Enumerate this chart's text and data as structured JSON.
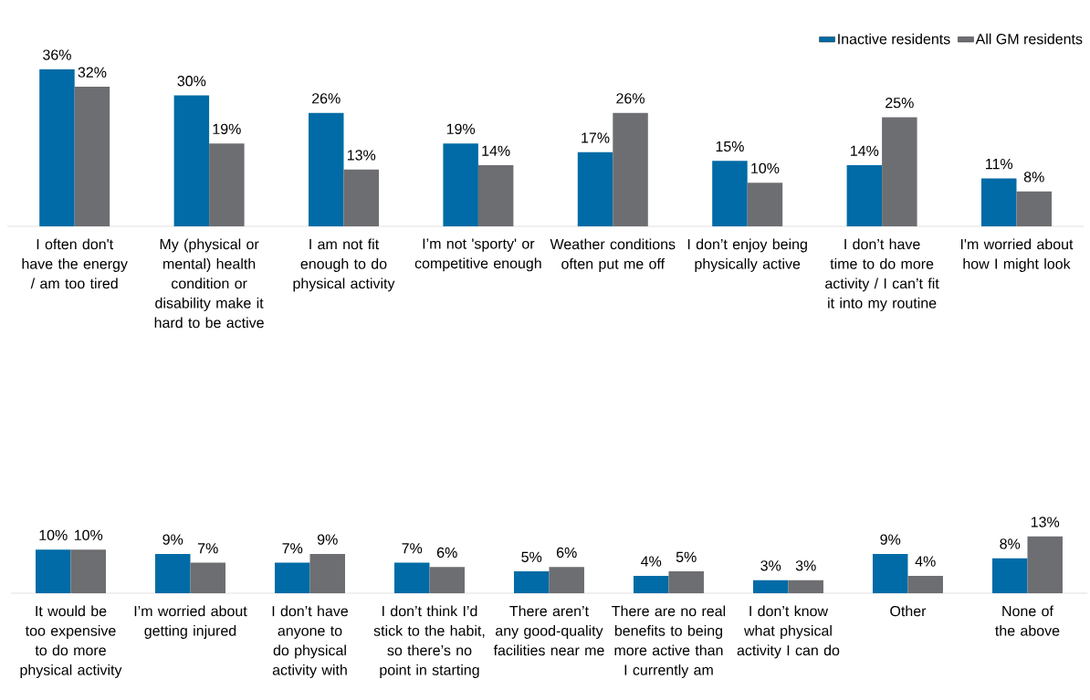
{
  "chart_data": [
    {
      "type": "bar",
      "categories": [
        "I often don't have the energy / am too tired",
        "My (physical or mental) health condition or disability make it hard to be active",
        "I am not fit enough to do physical activity",
        "I’m not 'sporty' or competitive enough",
        "Weather conditions often put me off",
        "I don’t enjoy being physically active",
        "I don’t have time to do more activity / I can’t fit it into my routine",
        "I'm worried about how I might look"
      ],
      "series": [
        {
          "name": "Inactive residents",
          "color": "#006ba6",
          "values": [
            36,
            30,
            26,
            19,
            17,
            15,
            14,
            11
          ],
          "value_labels": [
            "36%",
            "30%",
            "26%",
            "19%",
            "17%",
            "15%",
            "14%",
            "11%"
          ]
        },
        {
          "name": "All GM residents",
          "color": "#6d6e71",
          "values": [
            32,
            19,
            13,
            14,
            26,
            10,
            25,
            8
          ],
          "value_labels": [
            "32%",
            "19%",
            "13%",
            "14%",
            "26%",
            "10%",
            "25%",
            "8%"
          ]
        }
      ],
      "legend": "top right"
    },
    {
      "type": "bar",
      "categories": [
        "It would be too expensive to do more physical activity",
        "I’m worried about getting injured",
        "I don’t have anyone to do physical activity with",
        "I don’t think I’d stick to the habit, so there’s no point in starting",
        "There aren’t any good-quality facilities near me",
        "There are no real benefits to being more active than I currently am",
        "I don’t know what physical activity I can do",
        "Other",
        "None of the above"
      ],
      "series": [
        {
          "color": "#006ba6",
          "values": [
            10,
            9,
            7,
            7,
            5,
            4,
            3,
            9,
            8
          ],
          "value_labels": [
            "10%",
            "9%",
            "7%",
            "7%",
            "5%",
            "4%",
            "3%",
            "9%",
            "8%"
          ]
        },
        {
          "color": "#6d6e71",
          "values": [
            10,
            7,
            9,
            6,
            6,
            5,
            3,
            4,
            13
          ],
          "value_labels": [
            "10%",
            "7%",
            "9%",
            "6%",
            "6%",
            "5%",
            "3%",
            "4%",
            "13%"
          ]
        }
      ],
      "relative": false
    }
  ]
}
